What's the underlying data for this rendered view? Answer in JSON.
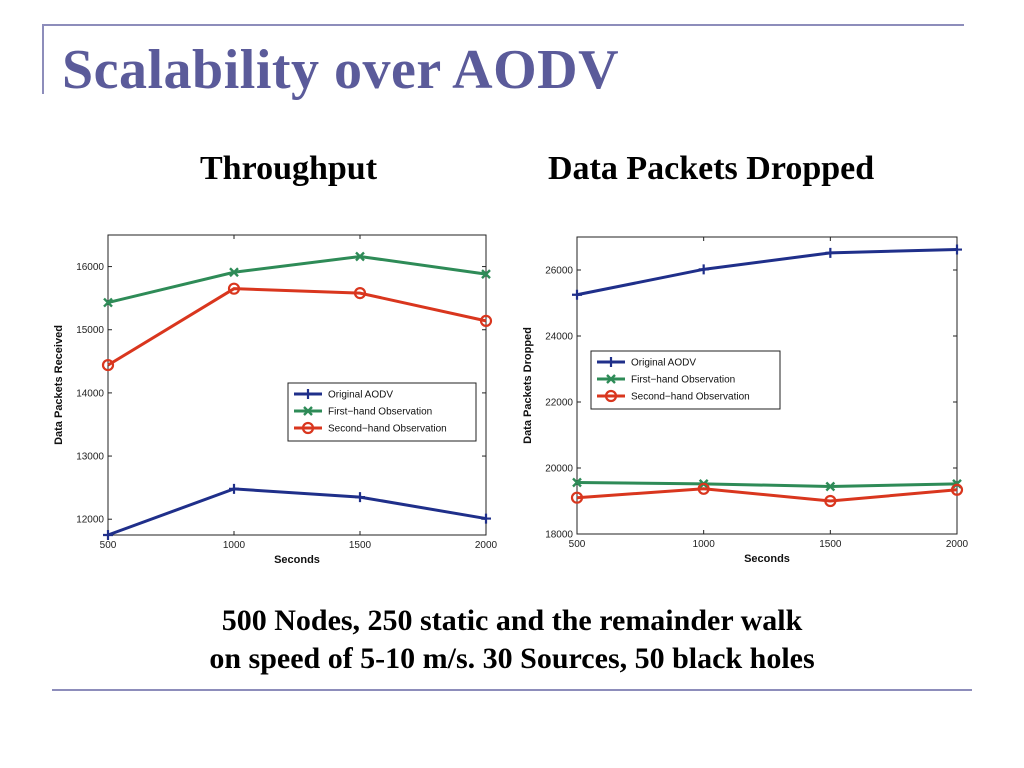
{
  "slide": {
    "title": "Scalability over AODV",
    "subtitle_left": "Throughput",
    "subtitle_right": "Data Packets Dropped",
    "caption_line1": "500 Nodes, 250 static and the remainder walk",
    "caption_line2": "on speed of  5-10 m/s. 30 Sources, 50 black holes"
  },
  "colors": {
    "title": "#5b5b9a",
    "rule": "#8d8dbb",
    "original": "#1f2f8a",
    "first_hand": "#2e8b57",
    "second_hand": "#d9361e"
  },
  "chart_data": [
    {
      "type": "line",
      "xlabel": "Seconds",
      "ylabel": "Data Packets Received",
      "x": [
        500,
        1000,
        1500,
        2000
      ],
      "xlim": [
        500,
        2000
      ],
      "ylim": [
        11750,
        16500
      ],
      "xticks": [
        500,
        1000,
        1500,
        2000
      ],
      "yticks": [
        12000,
        13000,
        14000,
        15000,
        16000
      ],
      "grid": false,
      "legend_position": "lower-right",
      "series": [
        {
          "name": "Original AODV",
          "marker": "plus",
          "color": "#1f2f8a",
          "values": [
            11750,
            12480,
            12350,
            12010
          ]
        },
        {
          "name": "First−hand Observation",
          "marker": "x",
          "color": "#2e8b57",
          "values": [
            15430,
            15910,
            16160,
            15880
          ]
        },
        {
          "name": "Second−hand Observation",
          "marker": "circle",
          "color": "#d9361e",
          "values": [
            14440,
            15650,
            15580,
            15140
          ]
        }
      ]
    },
    {
      "type": "line",
      "xlabel": "Seconds",
      "ylabel": "Data Packets Dropped",
      "x": [
        500,
        1000,
        1500,
        2000
      ],
      "xlim": [
        500,
        2000
      ],
      "ylim": [
        18000,
        27000
      ],
      "xticks": [
        500,
        1000,
        1500,
        2000
      ],
      "yticks": [
        18000,
        20000,
        22000,
        24000,
        26000
      ],
      "grid": false,
      "legend_position": "center-left",
      "series": [
        {
          "name": "Original AODV",
          "marker": "plus",
          "color": "#1f2f8a",
          "values": [
            25250,
            26020,
            26520,
            26620
          ]
        },
        {
          "name": "First−hand Observation",
          "marker": "x",
          "color": "#2e8b57",
          "values": [
            19560,
            19520,
            19440,
            19520
          ]
        },
        {
          "name": "Second−hand Observation",
          "marker": "circle",
          "color": "#d9361e",
          "values": [
            19100,
            19370,
            19000,
            19340
          ]
        }
      ]
    }
  ]
}
